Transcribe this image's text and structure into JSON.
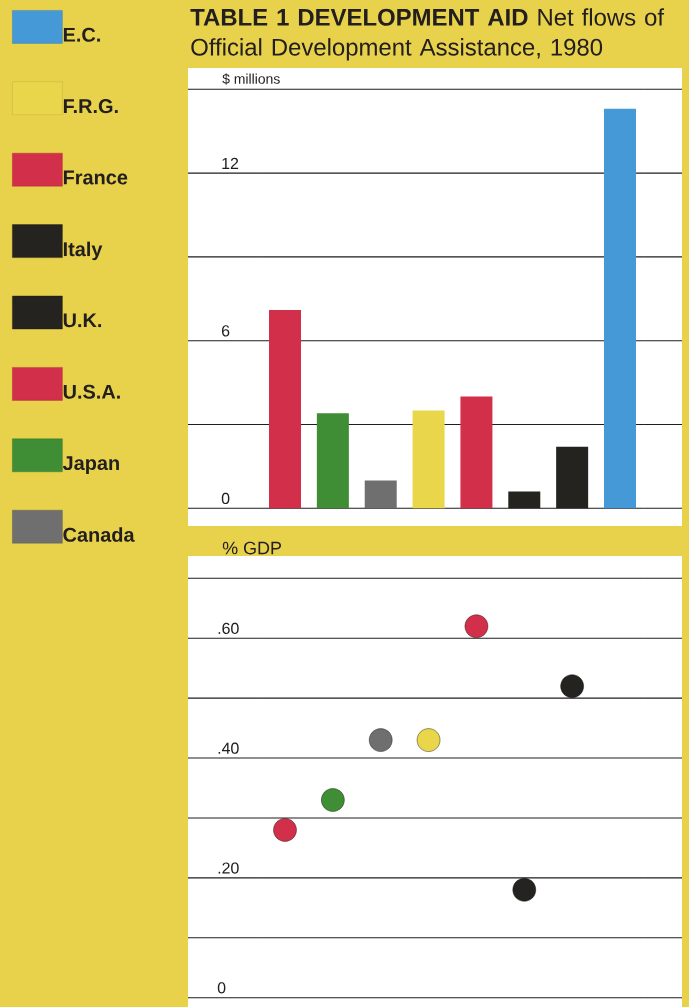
{
  "chart_data": [
    {
      "type": "bar",
      "title": "**TABLE 1 DEVELOPMENT AID** Net flows of Official Development Assistance, 1980",
      "ylabel": "$ millions",
      "categories": [
        null,
        null,
        null,
        null,
        null,
        null,
        null,
        null
      ],
      "series": [
        {
          "name": "E.C.",
          "color": "#4599d7",
          "values": [
            null,
            null,
            null,
            null,
            null,
            null,
            null,
            14.3
          ]
        },
        {
          "name": "F.R.G.",
          "color": "#ead64a",
          "values": [
            null,
            null,
            null,
            3.5,
            null,
            null,
            null,
            null
          ]
        },
        {
          "name": "France",
          "color": "#d22f4b",
          "values": [
            null,
            null,
            null,
            null,
            4.0,
            null,
            null,
            null
          ]
        },
        {
          "name": "Italy",
          "color": "#24231f",
          "values": [
            null,
            null,
            null,
            null,
            null,
            0.6,
            null,
            null
          ]
        },
        {
          "name": "U.K.",
          "color": "#24231f",
          "values": [
            null,
            null,
            null,
            null,
            null,
            null,
            2.2,
            null
          ]
        },
        {
          "name": "U.S.A.",
          "color": "#d22f4b",
          "values": [
            7.1,
            null,
            null,
            null,
            null,
            null,
            null,
            null
          ]
        },
        {
          "name": "Japan",
          "color": "#3f8d34",
          "values": [
            null,
            3.4,
            null,
            null,
            null,
            null,
            null,
            null
          ]
        },
        {
          "name": "Canada",
          "color": "#6f6f6f",
          "values": [
            null,
            null,
            1.0,
            null,
            null,
            null,
            null,
            null
          ]
        }
      ],
      "ylim": [
        0,
        15
      ],
      "yticks": [
        0,
        {
          "value": 3,
          "label": null
        },
        6,
        {
          "value": 9,
          "label": null
        },
        12,
        {
          "value": 15,
          "label": null
        }
      ],
      "grid": "y",
      "legend": "left"
    },
    {
      "type": "scatter",
      "ylabel": "% GDP",
      "categories": [
        null,
        null,
        null,
        null,
        null,
        null,
        null,
        null
      ],
      "values": [
        0.28,
        0.33,
        0.43,
        0.43,
        0.62,
        0.18,
        0.52,
        null
      ],
      "colors": [
        "#d22f4b",
        "#3f8d34",
        "#6f6f6f",
        "#ead64a",
        "#d22f4b",
        "#24231f",
        "#24231f",
        null
      ],
      "ylim": [
        0,
        0.7
      ],
      "yticks": [
        0,
        {
          "value": 0.1,
          "label": null
        },
        {
          "value": 0.2,
          "label": ".20"
        },
        {
          "value": 0.3,
          "label": null
        },
        {
          "value": 0.4,
          "label": ".40"
        },
        {
          "value": 0.5,
          "label": null
        },
        {
          "value": 0.6,
          "label": ".60"
        },
        {
          "value": 0.7,
          "label": null
        }
      ],
      "grid": "y",
      "marker": "circle"
    }
  ]
}
